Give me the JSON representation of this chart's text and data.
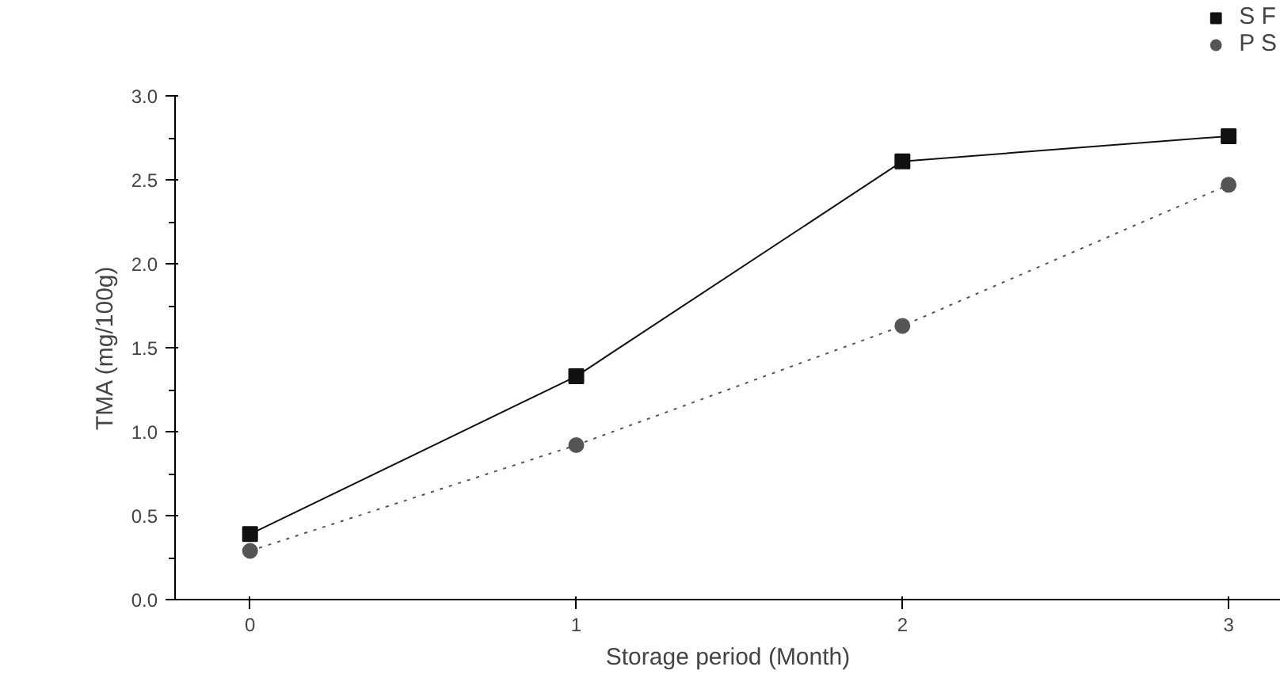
{
  "chart_data": {
    "type": "line",
    "xlabel": "Storage period (Month)",
    "ylabel": "TMA (mg/100g)",
    "x": [
      0,
      1,
      2,
      3
    ],
    "xlim": [
      -0.23,
      3.16
    ],
    "xticks": [
      0,
      1,
      2,
      3
    ],
    "ylim": [
      0,
      3.0
    ],
    "yticks": [
      {
        "value": 0,
        "label": "0.0"
      },
      {
        "value": 0.5,
        "label": "0.5"
      },
      {
        "value": 1,
        "label": "1.0"
      },
      {
        "value": 1.5,
        "label": "1.5"
      },
      {
        "value": 2,
        "label": "2.0"
      },
      {
        "value": 2.5,
        "label": "2.5"
      },
      {
        "value": 3,
        "label": "3.0"
      }
    ],
    "series": [
      {
        "name": "S F",
        "color": "#111111",
        "values": [
          0.39,
          1.33,
          2.61,
          2.76
        ],
        "marker": "square",
        "line_style": "solid"
      },
      {
        "name": "P S",
        "color": "#555555",
        "values": [
          0.29,
          0.92,
          1.63,
          2.47
        ],
        "marker": "circle",
        "line_style": "dotted"
      }
    ],
    "grid": false,
    "legend": "top right"
  }
}
